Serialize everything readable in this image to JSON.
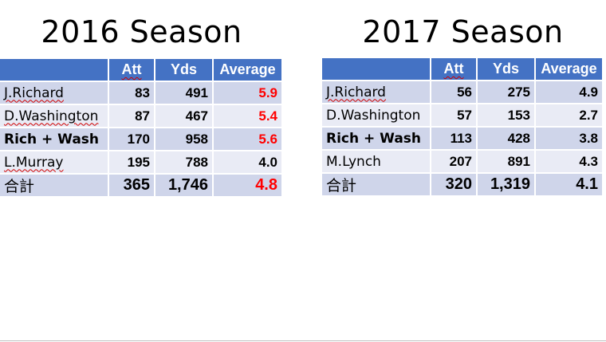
{
  "tables": [
    {
      "title": "2016 Season",
      "headers": [
        "",
        "Att",
        "Yds",
        "Average"
      ],
      "rows": [
        {
          "name": "J.Richard",
          "att": "83",
          "yds": "491",
          "avg": "5.9",
          "avg_red": true,
          "name_bold": false,
          "squiggle": true
        },
        {
          "name": "D.Washington",
          "att": "87",
          "yds": "467",
          "avg": "5.4",
          "avg_red": true,
          "name_bold": false,
          "squiggle": true
        },
        {
          "name": "Rich + Wash",
          "att": "170",
          "yds": "958",
          "avg": "5.6",
          "avg_red": true,
          "name_bold": true,
          "squiggle": false
        },
        {
          "name": "L.Murray",
          "att": "195",
          "yds": "788",
          "avg": "4.0",
          "avg_red": false,
          "name_bold": false,
          "squiggle": true
        },
        {
          "name": "合計",
          "att": "365",
          "yds": "1,746",
          "avg": "4.8",
          "avg_red": true,
          "name_bold": false,
          "squiggle": false
        }
      ]
    },
    {
      "title": "2017 Season",
      "headers": [
        "",
        "Att",
        "Yds",
        "Average"
      ],
      "rows": [
        {
          "name": "J.Richard",
          "att": "56",
          "yds": "275",
          "avg": "4.9",
          "avg_red": false,
          "name_bold": false,
          "squiggle": true
        },
        {
          "name": "D.Washington",
          "att": "57",
          "yds": "153",
          "avg": "2.7",
          "avg_red": false,
          "name_bold": false,
          "squiggle": false
        },
        {
          "name": "Rich + Wash",
          "att": "113",
          "yds": "428",
          "avg": "3.8",
          "avg_red": false,
          "name_bold": true,
          "squiggle": false
        },
        {
          "name": "M.Lynch",
          "att": "207",
          "yds": "891",
          "avg": "4.3",
          "avg_red": false,
          "name_bold": false,
          "squiggle": false
        },
        {
          "name": "合計",
          "att": "320",
          "yds": "1,319",
          "avg": "4.1",
          "avg_red": false,
          "name_bold": false,
          "squiggle": false
        }
      ]
    }
  ],
  "colors": {
    "header_bg": "#4472c4",
    "row_dark": "#cfd5ea",
    "row_light": "#e9ebf5",
    "highlight_red": "#ff0000"
  }
}
